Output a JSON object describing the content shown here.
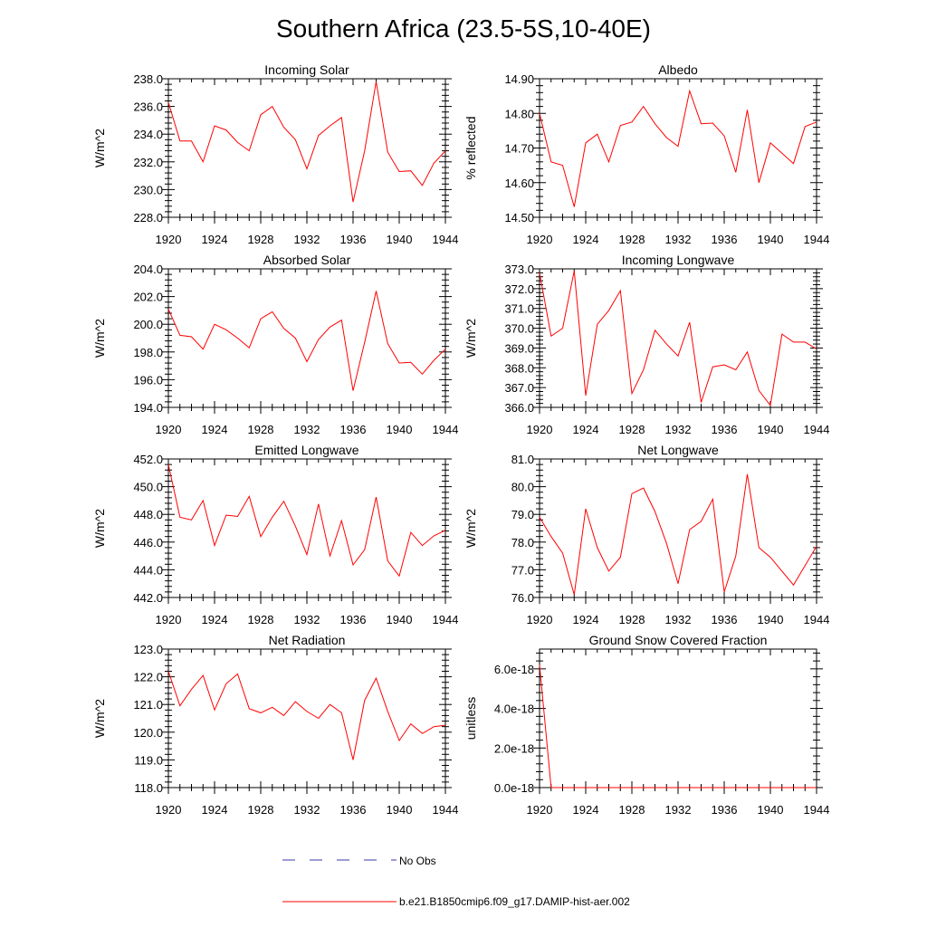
{
  "title": "Southern Africa (23.5-5S,10-40E)",
  "colors": {
    "model": "#ff0000",
    "obs": "#3a3aa8",
    "axis": "#000000"
  },
  "legend": {
    "obs_label": "No Obs",
    "model_label": "b.e21.B1850cmip6.f09_g17.DAMIP-hist-aer.002"
  },
  "chart_data": [
    {
      "type": "line",
      "title": "Incoming Solar",
      "ylabel": "W/m^2",
      "xlim": [
        1920,
        1944
      ],
      "ylim": [
        228,
        238
      ],
      "x_ticks": [
        1920,
        1924,
        1928,
        1932,
        1936,
        1940,
        1944
      ],
      "y_ticks": [
        "228.0",
        "230.0",
        "232.0",
        "234.0",
        "236.0",
        "238.0"
      ],
      "series": [
        {
          "x": [
            1920,
            1921,
            1922,
            1923,
            1924,
            1925,
            1926,
            1927,
            1928,
            1929,
            1930,
            1931,
            1932,
            1933,
            1934,
            1935,
            1936,
            1937,
            1938,
            1939,
            1940,
            1941,
            1942,
            1943,
            1944
          ],
          "values": [
            236.3,
            233.5,
            233.5,
            232.0,
            234.6,
            234.3,
            233.4,
            232.8,
            235.4,
            236.0,
            234.5,
            233.6,
            231.5,
            233.9,
            234.6,
            235.2,
            229.1,
            232.8,
            237.8,
            232.7,
            231.3,
            231.35,
            230.3,
            231.9,
            232.8
          ]
        }
      ]
    },
    {
      "type": "line",
      "title": "Albedo",
      "ylabel": "% reflected",
      "xlim": [
        1920,
        1944
      ],
      "ylim": [
        14.5,
        14.9
      ],
      "x_ticks": [
        1920,
        1924,
        1928,
        1932,
        1936,
        1940,
        1944
      ],
      "y_ticks": [
        "14.50",
        "14.60",
        "14.70",
        "14.80",
        "14.90"
      ],
      "series": [
        {
          "x": [
            1920,
            1921,
            1922,
            1923,
            1924,
            1925,
            1926,
            1927,
            1928,
            1929,
            1930,
            1931,
            1932,
            1933,
            1934,
            1935,
            1936,
            1937,
            1938,
            1939,
            1940,
            1941,
            1942,
            1943,
            1944
          ],
          "values": [
            14.8,
            14.66,
            14.65,
            14.53,
            14.715,
            14.74,
            14.66,
            14.765,
            14.775,
            14.82,
            14.77,
            14.73,
            14.705,
            14.865,
            14.77,
            14.772,
            14.735,
            14.63,
            14.81,
            14.6,
            14.715,
            14.685,
            14.655,
            14.762,
            14.775
          ]
        }
      ]
    },
    {
      "type": "line",
      "title": "Absorbed Solar",
      "ylabel": "W/m^2",
      "xlim": [
        1920,
        1944
      ],
      "ylim": [
        194,
        204
      ],
      "x_ticks": [
        1920,
        1924,
        1928,
        1932,
        1936,
        1940,
        1944
      ],
      "y_ticks": [
        "194.0",
        "196.0",
        "198.0",
        "200.0",
        "202.0",
        "204.0"
      ],
      "series": [
        {
          "x": [
            1920,
            1921,
            1922,
            1923,
            1924,
            1925,
            1926,
            1927,
            1928,
            1929,
            1930,
            1931,
            1932,
            1933,
            1934,
            1935,
            1936,
            1937,
            1938,
            1939,
            1940,
            1941,
            1942,
            1943,
            1944
          ],
          "values": [
            201.1,
            199.2,
            199.1,
            198.2,
            200.0,
            199.6,
            199.0,
            198.3,
            200.4,
            200.9,
            199.7,
            199.0,
            197.3,
            198.9,
            199.8,
            200.3,
            195.2,
            198.7,
            202.4,
            198.6,
            197.2,
            197.25,
            196.4,
            197.4,
            198.2
          ]
        }
      ]
    },
    {
      "type": "line",
      "title": "Incoming Longwave",
      "ylabel": "W/m^2",
      "xlim": [
        1920,
        1944
      ],
      "ylim": [
        366,
        373
      ],
      "x_ticks": [
        1920,
        1924,
        1928,
        1932,
        1936,
        1940,
        1944
      ],
      "y_ticks": [
        "366.0",
        "367.0",
        "368.0",
        "369.0",
        "370.0",
        "371.0",
        "372.0",
        "373.0"
      ],
      "series": [
        {
          "x": [
            1920,
            1921,
            1922,
            1923,
            1924,
            1925,
            1926,
            1927,
            1928,
            1929,
            1930,
            1931,
            1932,
            1933,
            1934,
            1935,
            1936,
            1937,
            1938,
            1939,
            1940,
            1941,
            1942,
            1943,
            1944
          ],
          "values": [
            372.8,
            369.6,
            370.0,
            372.9,
            366.6,
            370.2,
            370.9,
            371.9,
            366.7,
            367.9,
            369.9,
            369.2,
            368.6,
            370.3,
            366.25,
            368.05,
            368.15,
            367.9,
            368.8,
            366.85,
            366.1,
            369.7,
            369.3,
            369.3,
            368.95
          ]
        }
      ]
    },
    {
      "type": "line",
      "title": "Emitted Longwave",
      "ylabel": "W/m^2",
      "xlim": [
        1920,
        1944
      ],
      "ylim": [
        442,
        452
      ],
      "x_ticks": [
        1920,
        1924,
        1928,
        1932,
        1936,
        1940,
        1944
      ],
      "y_ticks": [
        "442.0",
        "444.0",
        "446.0",
        "448.0",
        "450.0",
        "452.0"
      ],
      "series": [
        {
          "x": [
            1920,
            1921,
            1922,
            1923,
            1924,
            1925,
            1926,
            1927,
            1928,
            1929,
            1930,
            1931,
            1932,
            1933,
            1934,
            1935,
            1936,
            1937,
            1938,
            1939,
            1940,
            1941,
            1942,
            1943,
            1944
          ],
          "values": [
            451.6,
            447.8,
            447.6,
            449.0,
            445.75,
            447.95,
            447.85,
            449.3,
            446.4,
            447.8,
            448.95,
            447.15,
            445.1,
            448.75,
            445.0,
            447.55,
            444.35,
            445.45,
            449.25,
            444.65,
            443.55,
            446.7,
            445.75,
            446.45,
            446.85
          ]
        }
      ]
    },
    {
      "type": "line",
      "title": "Net Longwave",
      "ylabel": "W/m^2",
      "xlim": [
        1920,
        1944
      ],
      "ylim": [
        76,
        81
      ],
      "x_ticks": [
        1920,
        1924,
        1928,
        1932,
        1936,
        1940,
        1944
      ],
      "y_ticks": [
        "76.0",
        "77.0",
        "78.0",
        "79.0",
        "80.0",
        "81.0"
      ],
      "series": [
        {
          "x": [
            1920,
            1921,
            1922,
            1923,
            1924,
            1925,
            1926,
            1927,
            1928,
            1929,
            1930,
            1931,
            1932,
            1933,
            1934,
            1935,
            1936,
            1937,
            1938,
            1939,
            1940,
            1941,
            1942,
            1943,
            1944
          ],
          "values": [
            78.9,
            78.2,
            77.6,
            76.1,
            79.2,
            77.8,
            76.95,
            77.45,
            79.75,
            79.95,
            79.1,
            77.95,
            76.5,
            78.45,
            78.75,
            79.55,
            76.2,
            77.5,
            80.45,
            77.8,
            77.45,
            76.95,
            76.45,
            77.15,
            77.85
          ]
        }
      ]
    },
    {
      "type": "line",
      "title": "Net Radiation",
      "ylabel": "W/m^2",
      "xlim": [
        1920,
        1944
      ],
      "ylim": [
        118,
        123
      ],
      "x_ticks": [
        1920,
        1924,
        1928,
        1932,
        1936,
        1940,
        1944
      ],
      "y_ticks": [
        "118.0",
        "119.0",
        "120.0",
        "121.0",
        "122.0",
        "123.0"
      ],
      "series": [
        {
          "x": [
            1920,
            1921,
            1922,
            1923,
            1924,
            1925,
            1926,
            1927,
            1928,
            1929,
            1930,
            1931,
            1932,
            1933,
            1934,
            1935,
            1936,
            1937,
            1938,
            1939,
            1940,
            1941,
            1942,
            1943,
            1944
          ],
          "values": [
            122.2,
            120.95,
            121.55,
            122.05,
            120.8,
            121.75,
            122.1,
            120.85,
            120.7,
            120.9,
            120.6,
            121.1,
            120.75,
            120.5,
            121.0,
            120.7,
            119.0,
            121.15,
            121.95,
            120.75,
            119.7,
            120.3,
            119.95,
            120.2,
            120.25
          ]
        }
      ]
    },
    {
      "type": "line",
      "title": "Ground Snow Covered Fraction",
      "ylabel": "unitless",
      "xlim": [
        1920,
        1944
      ],
      "ylim": [
        0,
        7e-18
      ],
      "x_ticks": [
        1920,
        1924,
        1928,
        1932,
        1936,
        1940,
        1944
      ],
      "y_ticks": [
        "0.0e-18",
        "2.0e-18",
        "4.0e-18",
        "6.0e-18"
      ],
      "y_tick_values": [
        0,
        2e-18,
        4e-18,
        6e-18
      ],
      "series": [
        {
          "x": [
            1920,
            1921,
            1922,
            1923,
            1924,
            1925,
            1926,
            1927,
            1928,
            1929,
            1930,
            1931,
            1932,
            1933,
            1934,
            1935,
            1936,
            1937,
            1938,
            1939,
            1940,
            1941,
            1942,
            1943,
            1944
          ],
          "values": [
            6.2e-18,
            0,
            0,
            0,
            0,
            0,
            0,
            0,
            0,
            0,
            0,
            0,
            0,
            0,
            0,
            0,
            0,
            0,
            0,
            0,
            0,
            0,
            0,
            0,
            0
          ]
        }
      ]
    }
  ]
}
